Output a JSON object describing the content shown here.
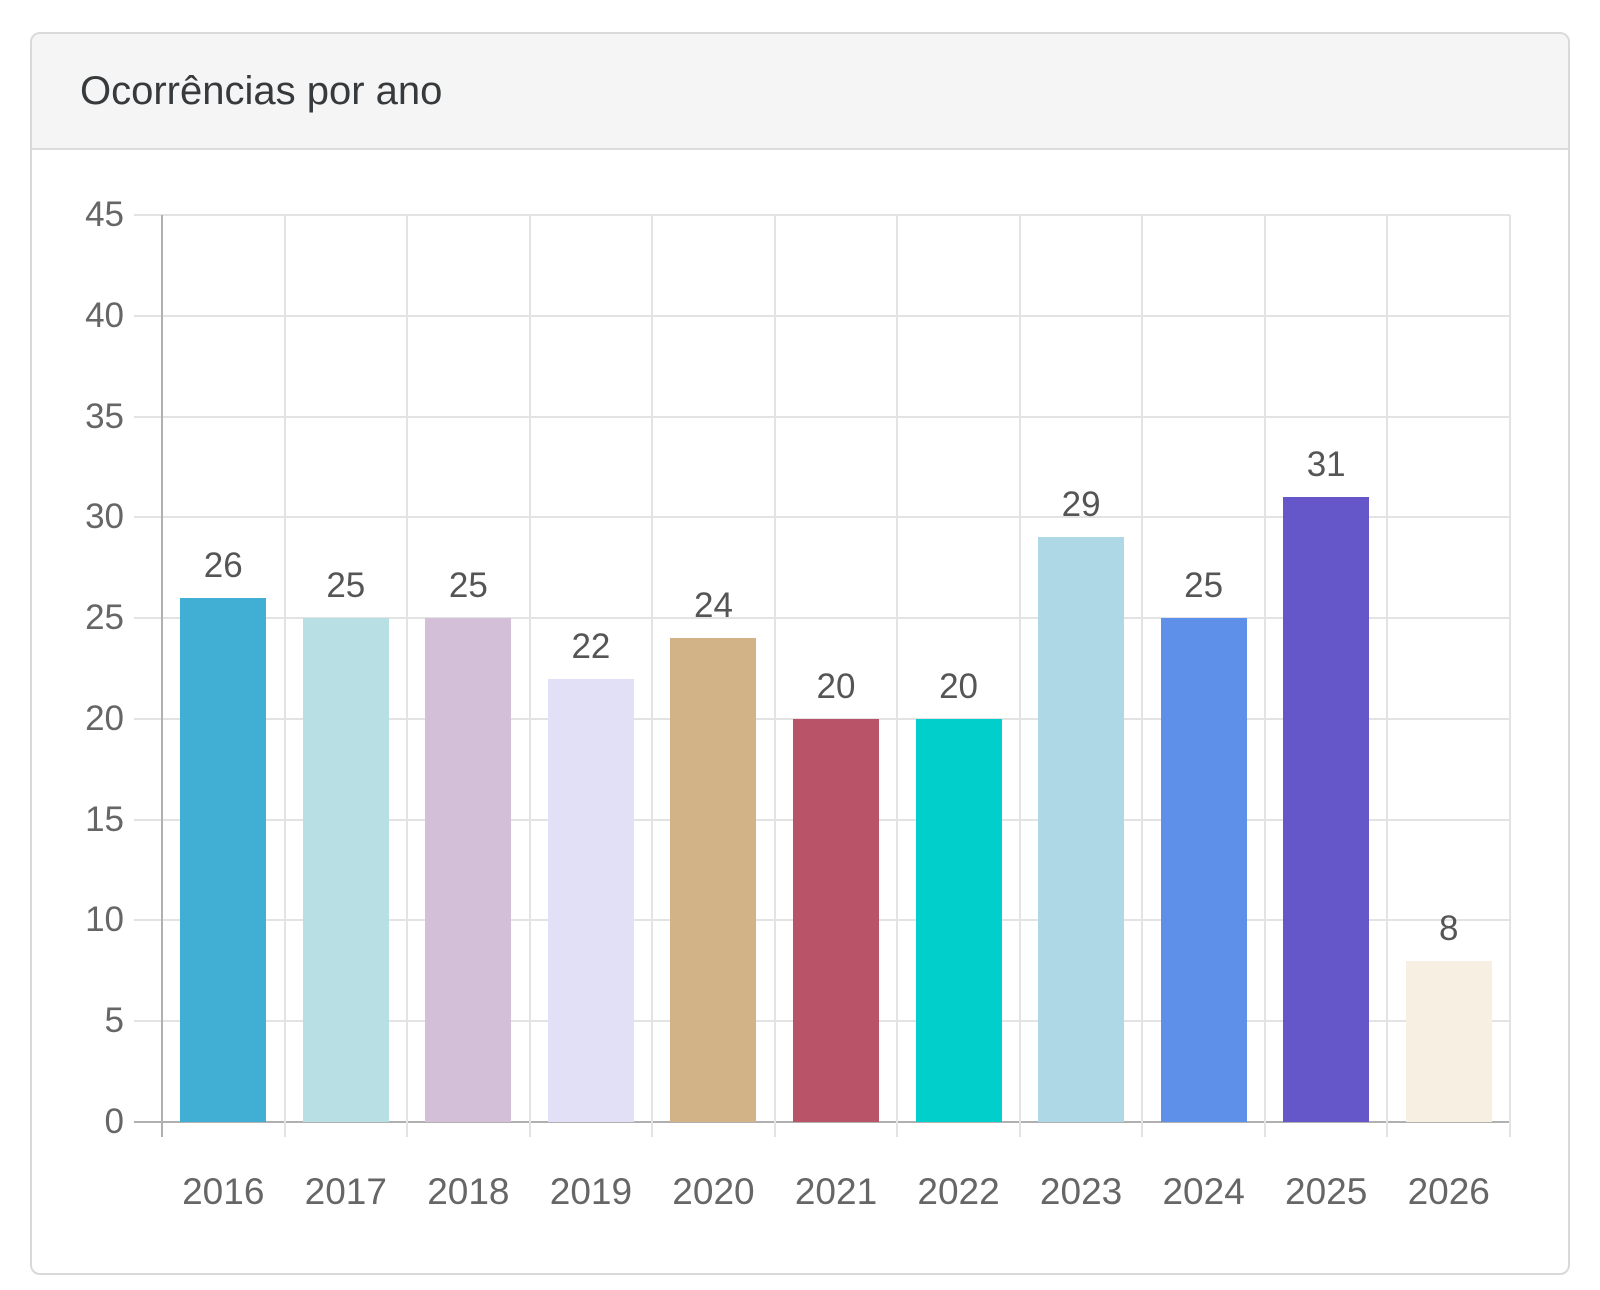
{
  "panel": {
    "title": "Ocorrências por ano"
  },
  "chart_data": {
    "type": "bar",
    "title": "Ocorrências por ano",
    "categories": [
      "2016",
      "2017",
      "2018",
      "2019",
      "2020",
      "2021",
      "2022",
      "2023",
      "2024",
      "2025",
      "2026"
    ],
    "values": [
      26,
      25,
      25,
      22,
      24,
      20,
      20,
      29,
      25,
      31,
      8
    ],
    "value_labels_shown": true,
    "bar_colors": [
      "#40AFD3",
      "#B8DFE3",
      "#D4BFD9",
      "#E2E0F6",
      "#D2B287",
      "#B95367",
      "#00CFCB",
      "#AED8E6",
      "#5E8FE9",
      "#6557C9",
      "#F8EFE3"
    ],
    "xlabel": "",
    "ylabel": "",
    "ylim": [
      0,
      45
    ],
    "yticks": [
      0,
      5,
      10,
      15,
      20,
      25,
      30,
      35,
      40,
      45
    ],
    "grid": true,
    "legend": "none",
    "colors": {
      "grid": "#e3e3e3",
      "axis": "#b0b0b0",
      "tick_label": "#666666",
      "value_label": "#555555",
      "header_bg": "#f5f5f5",
      "card_border": "#d9d9d9",
      "title_text": "#373a3c"
    }
  }
}
